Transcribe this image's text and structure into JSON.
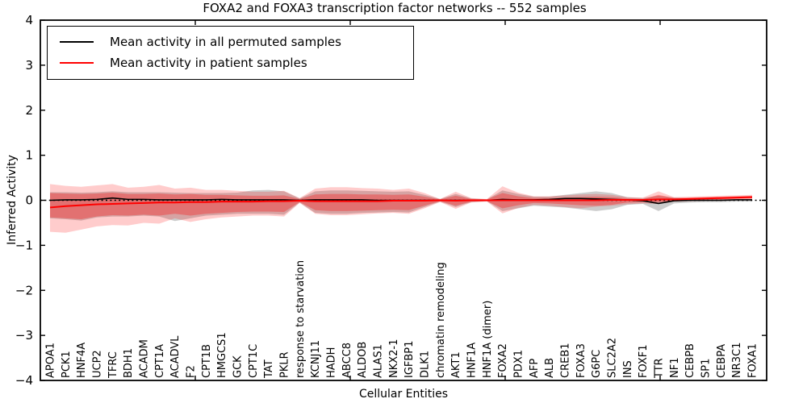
{
  "chart_data": {
    "type": "line",
    "title": "FOXA2 and FOXA3 transcription factor networks -- 552 samples",
    "xlabel": "Cellular Entities",
    "ylabel": "Inferred Activity",
    "ylim": [
      -4,
      4
    ],
    "yticks": [
      4,
      3,
      2,
      1,
      0,
      -1,
      -2,
      -3,
      -4
    ],
    "grid": false,
    "legend_position": "upper left",
    "zero_line": {
      "style": "dotted",
      "color": "#000000",
      "y": 0
    },
    "categories": [
      "APOA1",
      "PCK1",
      "HNF4A",
      "UCP2",
      "TFRC",
      "BDH1",
      "ACADM",
      "CPT1A",
      "ACADVL",
      "F2",
      "CPT1B",
      "HMGCS1",
      "GCK",
      "CPT1C",
      "TAT",
      "PKLR",
      "response to starvation",
      "KCNJ11",
      "HADH",
      "ABCC8",
      "ALDOB",
      "ALAS1",
      "NKX2-1",
      "IGFBP1",
      "DLK1",
      "chromatin remodeling",
      "AKT1",
      "HNF1A",
      "HNF1A (dimer)",
      "FOXA2",
      "PDX1",
      "AFP",
      "ALB",
      "CREB1",
      "FOXA3",
      "G6PC",
      "SLC2A2",
      "INS",
      "FOXF1",
      "TTR",
      "NF1",
      "CEBPB",
      "SP1",
      "CEBPA",
      "NR3C1",
      "FOXA1"
    ],
    "series": [
      {
        "name": "Mean activity in all permuted samples",
        "color": "#000000",
        "values": [
          0.0,
          0.01,
          0.01,
          0.02,
          0.05,
          0.02,
          0.02,
          0.01,
          0.01,
          0.01,
          0.01,
          0.02,
          0.01,
          0.01,
          0.01,
          0.01,
          0.0,
          0.01,
          0.01,
          0.01,
          0.01,
          0.0,
          0.0,
          0.0,
          0.0,
          0.0,
          0.0,
          0.0,
          0.0,
          0.02,
          0.01,
          0.01,
          0.02,
          0.04,
          0.04,
          0.03,
          0.02,
          0.01,
          -0.01,
          -0.07,
          -0.01,
          0.0,
          0.0,
          0.0,
          0.01,
          0.01
        ]
      },
      {
        "name": "Mean activity in patient samples",
        "color": "#ff0000",
        "values": [
          -0.16,
          -0.13,
          -0.11,
          -0.09,
          -0.08,
          -0.07,
          -0.06,
          -0.05,
          -0.05,
          -0.04,
          -0.04,
          -0.03,
          -0.03,
          -0.03,
          -0.02,
          -0.02,
          -0.01,
          -0.02,
          -0.02,
          -0.02,
          -0.02,
          -0.02,
          -0.01,
          -0.01,
          -0.01,
          0.0,
          -0.01,
          0.0,
          0.0,
          0.0,
          0.0,
          0.0,
          0.0,
          0.0,
          0.0,
          0.0,
          0.01,
          0.01,
          0.01,
          0.02,
          0.02,
          0.03,
          0.04,
          0.05,
          0.06,
          0.07
        ]
      }
    ],
    "bands": [
      {
        "name": "permuted-samples-range",
        "fill": "rgba(120,120,120,0.38)",
        "upper": [
          0.18,
          0.18,
          0.17,
          0.18,
          0.2,
          0.18,
          0.18,
          0.18,
          0.17,
          0.16,
          0.16,
          0.16,
          0.17,
          0.22,
          0.23,
          0.2,
          0.04,
          0.2,
          0.22,
          0.22,
          0.21,
          0.2,
          0.19,
          0.2,
          0.12,
          0.03,
          0.14,
          0.04,
          0.02,
          0.22,
          0.14,
          0.08,
          0.08,
          0.12,
          0.16,
          0.2,
          0.16,
          0.07,
          0.05,
          0.1,
          0.06,
          0.04,
          0.04,
          0.03,
          0.03,
          0.03
        ],
        "lower": [
          -0.4,
          -0.42,
          -0.45,
          -0.38,
          -0.36,
          -0.36,
          -0.34,
          -0.36,
          -0.46,
          -0.4,
          -0.34,
          -0.32,
          -0.3,
          -0.3,
          -0.3,
          -0.32,
          -0.05,
          -0.28,
          -0.3,
          -0.3,
          -0.28,
          -0.27,
          -0.26,
          -0.27,
          -0.15,
          -0.03,
          -0.15,
          -0.04,
          -0.02,
          -0.24,
          -0.18,
          -0.12,
          -0.14,
          -0.16,
          -0.2,
          -0.24,
          -0.2,
          -0.1,
          -0.08,
          -0.24,
          -0.07,
          -0.05,
          -0.04,
          -0.04,
          -0.03,
          -0.03
        ]
      },
      {
        "name": "patient-samples-outer-range",
        "fill": "rgba(255,0,0,0.20)",
        "upper": [
          0.36,
          0.32,
          0.3,
          0.33,
          0.36,
          0.28,
          0.3,
          0.34,
          0.26,
          0.28,
          0.23,
          0.23,
          0.21,
          0.19,
          0.19,
          0.21,
          0.05,
          0.26,
          0.29,
          0.29,
          0.27,
          0.26,
          0.23,
          0.26,
          0.16,
          0.03,
          0.19,
          0.05,
          0.03,
          0.31,
          0.17,
          0.09,
          0.09,
          0.11,
          0.13,
          0.14,
          0.12,
          0.07,
          0.06,
          0.2,
          0.07,
          0.08,
          0.09,
          0.1,
          0.11,
          0.12
        ],
        "lower": [
          -0.7,
          -0.72,
          -0.65,
          -0.58,
          -0.55,
          -0.56,
          -0.5,
          -0.52,
          -0.4,
          -0.48,
          -0.42,
          -0.38,
          -0.36,
          -0.34,
          -0.34,
          -0.36,
          -0.06,
          -0.3,
          -0.33,
          -0.33,
          -0.31,
          -0.29,
          -0.28,
          -0.3,
          -0.18,
          -0.04,
          -0.19,
          -0.05,
          -0.03,
          -0.29,
          -0.17,
          -0.1,
          -0.12,
          -0.15,
          -0.18,
          -0.14,
          -0.12,
          -0.09,
          -0.07,
          -0.08,
          -0.03,
          -0.02,
          -0.01,
          0.0,
          0.01,
          0.02
        ]
      },
      {
        "name": "patient-samples-inner-range",
        "fill": "rgba(255,0,0,0.30)",
        "upper": [
          0.16,
          0.15,
          0.14,
          0.15,
          0.17,
          0.14,
          0.14,
          0.15,
          0.13,
          0.14,
          0.12,
          0.12,
          0.11,
          0.1,
          0.1,
          0.11,
          0.03,
          0.13,
          0.14,
          0.14,
          0.13,
          0.13,
          0.12,
          0.13,
          0.08,
          0.02,
          0.1,
          0.03,
          0.02,
          0.16,
          0.09,
          0.05,
          0.05,
          0.06,
          0.07,
          0.08,
          0.07,
          0.04,
          0.03,
          0.12,
          0.05,
          0.06,
          0.07,
          0.08,
          0.09,
          0.1
        ],
        "lower": [
          -0.38,
          -0.4,
          -0.42,
          -0.36,
          -0.33,
          -0.34,
          -0.32,
          -0.34,
          -0.3,
          -0.34,
          -0.3,
          -0.28,
          -0.26,
          -0.25,
          -0.25,
          -0.26,
          -0.04,
          -0.22,
          -0.24,
          -0.24,
          -0.23,
          -0.22,
          -0.21,
          -0.22,
          -0.12,
          -0.02,
          -0.12,
          -0.03,
          -0.02,
          -0.18,
          -0.11,
          -0.06,
          -0.07,
          -0.09,
          -0.11,
          -0.12,
          -0.1,
          -0.05,
          -0.04,
          -0.04,
          -0.01,
          0.0,
          0.01,
          0.02,
          0.03,
          0.04
        ]
      }
    ]
  }
}
